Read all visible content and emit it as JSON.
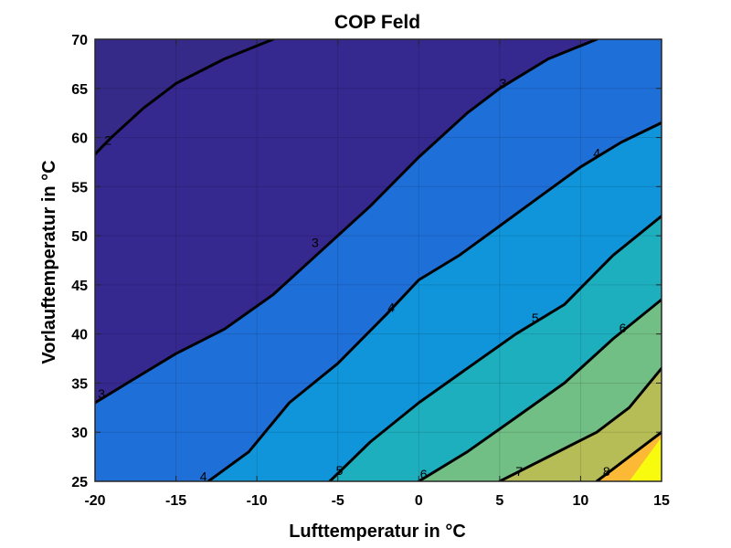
{
  "chart_data": {
    "type": "contour",
    "title": "COP Feld",
    "xlabel": "Lufttemperatur in °C",
    "ylabel": "Vorlauftemperatur in °C",
    "xlim": [
      -20,
      15
    ],
    "ylim": [
      25,
      70
    ],
    "x_ticks": [
      "-20",
      "-15",
      "-10",
      "-5",
      "0",
      "5",
      "10",
      "15"
    ],
    "y_ticks": [
      "25",
      "30",
      "35",
      "40",
      "45",
      "50",
      "55",
      "60",
      "65",
      "70"
    ],
    "grid": true,
    "colormap": "parula",
    "levels": [
      {
        "level": 2,
        "label": "2",
        "color": "#35288f",
        "points": [
          [
            -20,
            58.3
          ],
          [
            -19,
            60
          ],
          [
            -17,
            63
          ],
          [
            -15,
            65.5
          ],
          [
            -12,
            68
          ],
          [
            -9,
            70
          ]
        ]
      },
      {
        "level": 3,
        "label": "3",
        "color": "#1f6fd8",
        "points": [
          [
            -20,
            33
          ],
          [
            -18,
            35
          ],
          [
            -15,
            38
          ],
          [
            -12,
            40.5
          ],
          [
            -9,
            44
          ],
          [
            -6,
            48.5
          ],
          [
            -3,
            53
          ],
          [
            0,
            58
          ],
          [
            3,
            62.5
          ],
          [
            5,
            65
          ],
          [
            8,
            68
          ],
          [
            11,
            70
          ]
        ]
      },
      {
        "level": 4,
        "label": "4",
        "color": "#1095da",
        "points": [
          [
            -13,
            25
          ],
          [
            -10.5,
            28
          ],
          [
            -8,
            33
          ],
          [
            -5,
            37
          ],
          [
            -2,
            42
          ],
          [
            0,
            45.5
          ],
          [
            2.5,
            48
          ],
          [
            5,
            51
          ],
          [
            7.5,
            54
          ],
          [
            10,
            57
          ],
          [
            12.5,
            59.5
          ],
          [
            15,
            61.5
          ]
        ]
      },
      {
        "level": 5,
        "label": "5",
        "color": "#1eafbf",
        "points": [
          [
            -5.5,
            25
          ],
          [
            -3,
            29
          ],
          [
            0,
            33
          ],
          [
            3,
            36.5
          ],
          [
            6,
            40
          ],
          [
            9,
            43
          ],
          [
            12,
            48
          ],
          [
            15,
            52
          ]
        ]
      },
      {
        "level": 6,
        "label": "6",
        "color": "#72bf85",
        "points": [
          [
            0,
            25
          ],
          [
            3,
            28
          ],
          [
            6,
            31.5
          ],
          [
            9,
            35
          ],
          [
            12,
            39.5
          ],
          [
            15,
            43.5
          ]
        ]
      },
      {
        "level": 7,
        "label": "7",
        "color": "#b6bd56",
        "points": [
          [
            5,
            25
          ],
          [
            8,
            27.5
          ],
          [
            11,
            30
          ],
          [
            13,
            32.5
          ],
          [
            15,
            36.5
          ]
        ]
      },
      {
        "level": 8,
        "label": "8",
        "color": "#fbb936",
        "points": [
          [
            11,
            25
          ],
          [
            13,
            27.5
          ],
          [
            15,
            30
          ]
        ]
      }
    ],
    "fill_below_lowest": "#352a87",
    "fill_above_highest": "#f9fb0e",
    "contour_labels": [
      {
        "text": "2",
        "x": -19.2,
        "y": 59.6
      },
      {
        "text": "3",
        "x": -19.6,
        "y": 33.8
      },
      {
        "text": "3",
        "x": -6.4,
        "y": 49.2
      },
      {
        "text": "3",
        "x": 5.2,
        "y": 65.4
      },
      {
        "text": "4",
        "x": -13.3,
        "y": 25.4
      },
      {
        "text": "4",
        "x": -1.7,
        "y": 42.6
      },
      {
        "text": "4",
        "x": 11.0,
        "y": 58.3
      },
      {
        "text": "5",
        "x": -4.9,
        "y": 26.0
      },
      {
        "text": "5",
        "x": 7.2,
        "y": 41.5
      },
      {
        "text": "6",
        "x": 0.3,
        "y": 25.6
      },
      {
        "text": "6",
        "x": 12.6,
        "y": 40.5
      },
      {
        "text": "7",
        "x": 6.2,
        "y": 25.9
      },
      {
        "text": "8",
        "x": 11.6,
        "y": 25.9
      }
    ]
  }
}
